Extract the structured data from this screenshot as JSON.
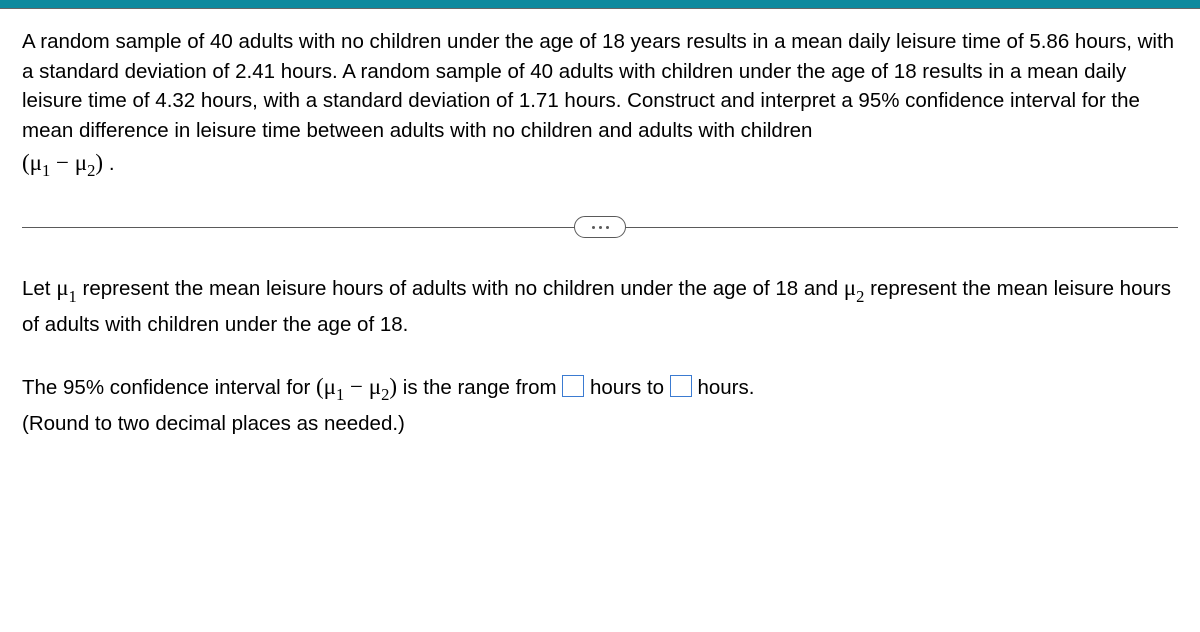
{
  "colors": {
    "top_bar": "#0e8a9e",
    "divider": "#5a5a5a",
    "input_border": "#3b7bd1",
    "text": "#000000",
    "background": "#ffffff"
  },
  "problem": {
    "line1": "A random sample of 40 adults with no children under the age of 18 years results in a mean daily leisure time of 5.86 hours, with a standard deviation of 2.41 hours. A random sample of 40 adults with children under the age of 18 results in a mean daily leisure time of 4.32 hours, with a standard deviation of 1.71 hours. Construct and interpret a 95% confidence interval for the mean difference in leisure time between adults with no children and adults with children",
    "mu_diff_open": "(",
    "mu1": "μ",
    "sub1": "1",
    "minus": " − ",
    "mu2": "μ",
    "sub2": "2",
    "mu_diff_close": ")",
    "period": "."
  },
  "definition": {
    "pre": "Let ",
    "mu1": "μ",
    "sub1": "1",
    "mid1": " represent the mean leisure hours of adults with no children under the age of 18 and ",
    "mu2": "μ",
    "sub2": "2",
    "mid2": " represent the mean leisure hours of adults with children under the age of 18."
  },
  "answer": {
    "pre": "The 95% confidence interval for ",
    "mu_diff_open": "(",
    "mu1": "μ",
    "sub1": "1",
    "minus": " − ",
    "mu2": "μ",
    "sub2": "2",
    "mu_diff_close": ")",
    "mid1": " is the range from ",
    "mid2": " hours to ",
    "mid3": " hours.",
    "round_note": "(Round to two decimal places as needed.)"
  }
}
